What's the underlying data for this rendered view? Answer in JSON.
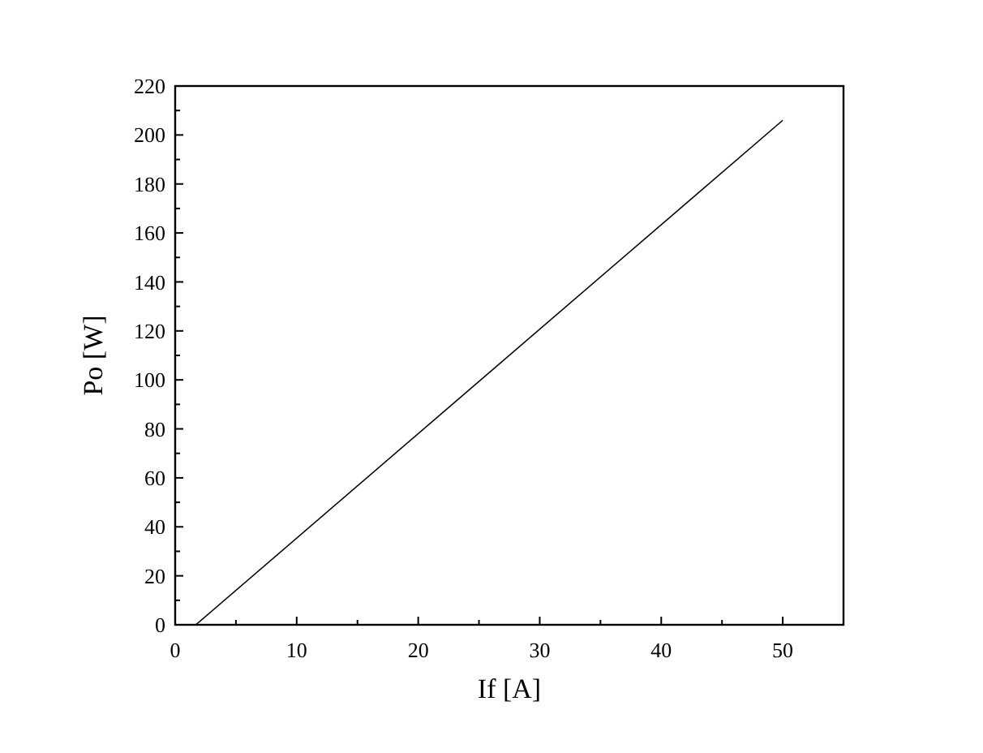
{
  "chart_data": {
    "type": "line",
    "xlabel": "If [A]",
    "ylabel": "Po [W]",
    "x": [
      1.7,
      50
    ],
    "series": [
      {
        "color": "#000000",
        "values": [
          0,
          206
        ]
      }
    ],
    "xlim": [
      0,
      55
    ],
    "ylim": [
      0,
      220
    ],
    "xticks": [
      0,
      {
        "value": 5,
        "label": null
      },
      10,
      {
        "value": 15,
        "label": null
      },
      20,
      {
        "value": 25,
        "label": null
      },
      30,
      {
        "value": 35,
        "label": null
      },
      40,
      {
        "value": 45,
        "label": null
      },
      50
    ],
    "yticks": [
      0,
      {
        "value": 10,
        "label": null
      },
      20,
      {
        "value": 30,
        "label": null
      },
      40,
      {
        "value": 50,
        "label": null
      },
      60,
      {
        "value": 70,
        "label": null
      },
      80,
      {
        "value": 90,
        "label": null
      },
      100,
      {
        "value": 110,
        "label": null
      },
      120,
      {
        "value": 130,
        "label": null
      },
      140,
      {
        "value": 150,
        "label": null
      },
      160,
      {
        "value": 170,
        "label": null
      },
      180,
      {
        "value": 190,
        "label": null
      },
      200,
      {
        "value": 210,
        "label": null
      },
      220
    ],
    "grid": false,
    "marker": "none",
    "line_style": "solid"
  }
}
